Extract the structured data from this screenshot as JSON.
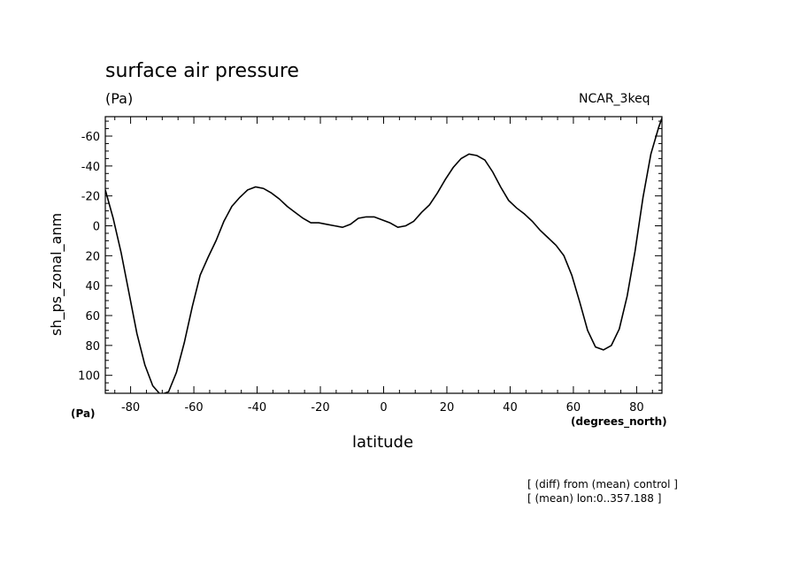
{
  "title": "surface air pressure",
  "units": "(Pa)",
  "model": "NCAR_3keq",
  "y_unit_label": "(Pa)",
  "x_unit_label": "(degrees_north)",
  "notes": [
    "[ (diff) from (mean) control ]",
    "[ (mean) lon:0..357.188 ]"
  ],
  "chart_data": {
    "type": "line",
    "title": "surface air pressure",
    "xlabel": "latitude",
    "ylabel": "sh_ps_zonal_anm",
    "xlim": [
      -88,
      88
    ],
    "ylim": [
      112,
      -73
    ],
    "y_inverted": true,
    "x_ticks": [
      -80,
      -60,
      -40,
      -20,
      0,
      20,
      40,
      60,
      80
    ],
    "x_tick_labels": [
      "-80",
      "-60",
      "-40",
      "-20",
      "0",
      "20",
      "40",
      "60",
      "80"
    ],
    "y_ticks": [
      -60,
      -40,
      -20,
      0,
      20,
      40,
      60,
      80,
      100
    ],
    "y_tick_labels": [
      "-60",
      "-40",
      "-20",
      "0",
      "20",
      "40",
      "60",
      "80",
      "100"
    ],
    "grid": false,
    "series": [
      {
        "x": [
          -88,
          -85.5,
          -83,
          -80.5,
          -78,
          -75.5,
          -73,
          -70.5,
          -68,
          -65.5,
          -63,
          -60.5,
          -58,
          -55.5,
          -53,
          -50.5,
          -48,
          -45.5,
          -43,
          -40.5,
          -38,
          -35.5,
          -33,
          -30.5,
          -28,
          -25.5,
          -23,
          -20.5,
          -18,
          -15.5,
          -13,
          -10.5,
          -8,
          -5.5,
          -3,
          -0.5,
          2,
          4.5,
          7,
          9.5,
          12,
          14.5,
          17,
          19.5,
          22,
          24.5,
          27,
          29.5,
          32,
          34.5,
          37,
          39.5,
          42,
          44.5,
          47,
          49.5,
          52,
          54.5,
          57,
          59.5,
          62,
          64.5,
          67,
          69.5,
          72,
          74.5,
          77,
          79.5,
          82,
          84.5,
          87,
          88
        ],
        "y": [
          -24,
          -5,
          18,
          45,
          72,
          93,
          107,
          113,
          111,
          98,
          78,
          54,
          33,
          21,
          10,
          -3,
          -13,
          -19,
          -24,
          -26,
          -25,
          -22,
          -18,
          -13,
          -9,
          -5,
          -2,
          -2,
          -1,
          0,
          1,
          -1,
          -5,
          -6,
          -6,
          -4,
          -2,
          1,
          0,
          -3,
          -9,
          -14,
          -22,
          -31,
          -39,
          -45,
          -48,
          -47,
          -44,
          -36,
          -26,
          -17,
          -12,
          -8,
          -3,
          3,
          8,
          13,
          20,
          33,
          51,
          70,
          81,
          83,
          80,
          69,
          47,
          17,
          -19,
          -48,
          -66,
          -72
        ]
      }
    ]
  }
}
